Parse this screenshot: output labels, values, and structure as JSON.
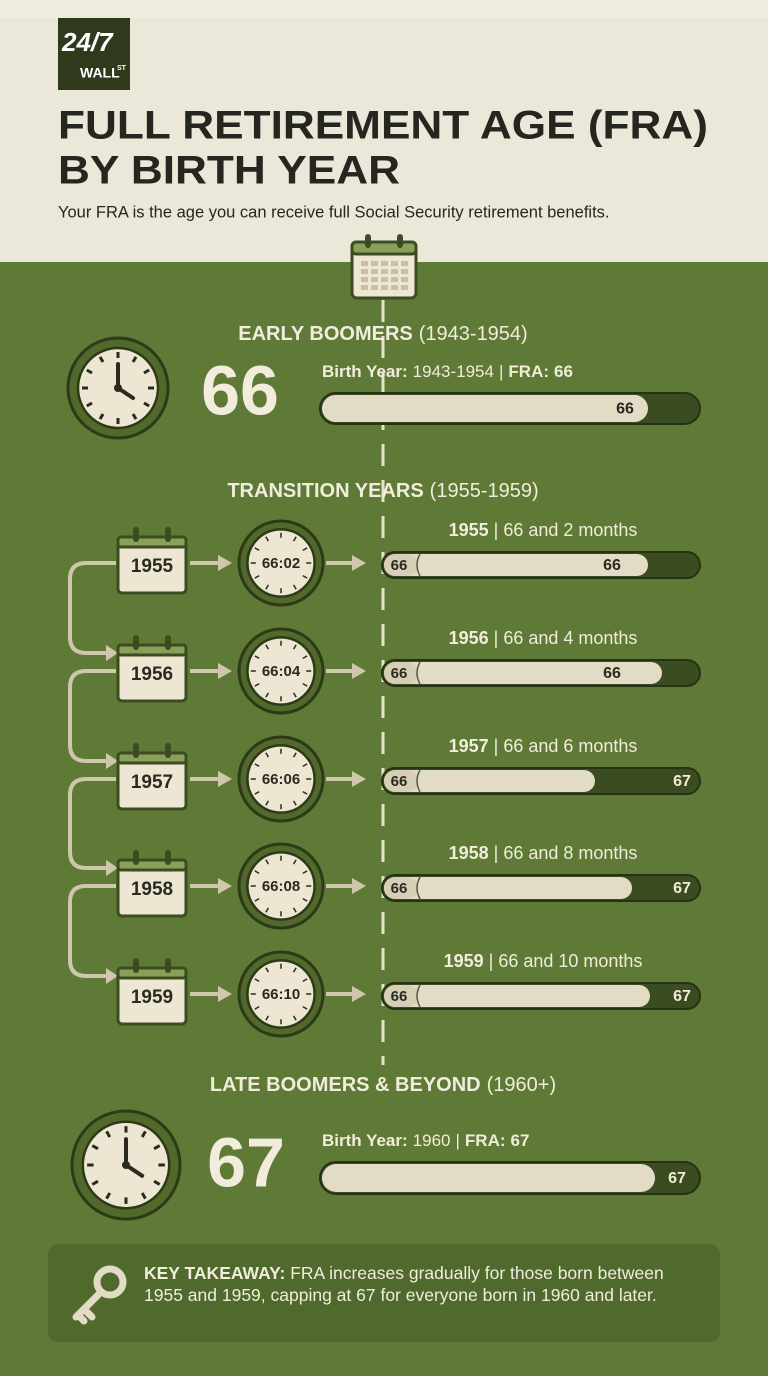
{
  "logo": {
    "top": "24/7",
    "bottom": "WALL",
    "sup": "ST"
  },
  "header": {
    "title_line1": "FULL RETIREMENT AGE (FRA)",
    "title_line2": "BY BIRTH YEAR",
    "subtitle": "Your FRA is the age you can receive full Social Security retirement benefits."
  },
  "early": {
    "heading": "EARLY BOOMERS",
    "range": "(1943-1954)",
    "age": "66",
    "year_label": "Birth Year:",
    "years": "1943-1954",
    "separator": "|",
    "fra_label": "FRA:",
    "fra": "66",
    "bar_label": "66"
  },
  "transition": {
    "heading": "TRANSITION YEARS",
    "range": "(1955-1959)",
    "rows": [
      {
        "calendar": "1955",
        "clock": "66:02",
        "year": "1955",
        "separator": "|",
        "description": "66 and 2 months",
        "bar_start": "66",
        "bar_end": "66"
      },
      {
        "calendar": "1956",
        "clock": "66:04",
        "year": "1956",
        "separator": "|",
        "description": "66 and 4 months",
        "bar_start": "66",
        "bar_end": "66"
      },
      {
        "calendar": "1957",
        "clock": "66:06",
        "year": "1957",
        "separator": "|",
        "description": "66 and 6 months",
        "bar_start": "66",
        "bar_end": "67"
      },
      {
        "calendar": "1958",
        "clock": "66:08",
        "year": "1958",
        "separator": "|",
        "description": "66 and 8 months",
        "bar_start": "66",
        "bar_end": "67"
      },
      {
        "calendar": "1959",
        "clock": "66:10",
        "year": "1959",
        "separator": "|",
        "description": "66 and 10 months",
        "bar_start": "66",
        "bar_end": "67"
      }
    ]
  },
  "late": {
    "heading": "LATE BOOMERS & BEYOND",
    "range": "(1960+)",
    "age": "67",
    "year_label": "Birth Year:",
    "years": "1960",
    "separator": "|",
    "fra_label": "FRA:",
    "fra": "67",
    "bar_label": "67"
  },
  "takeaway": {
    "label": "KEY TAKEAWAY:",
    "text": "FRA increases gradually for those born between 1955 and 1959, capping at 67 for everyone born in 1960 and later."
  }
}
